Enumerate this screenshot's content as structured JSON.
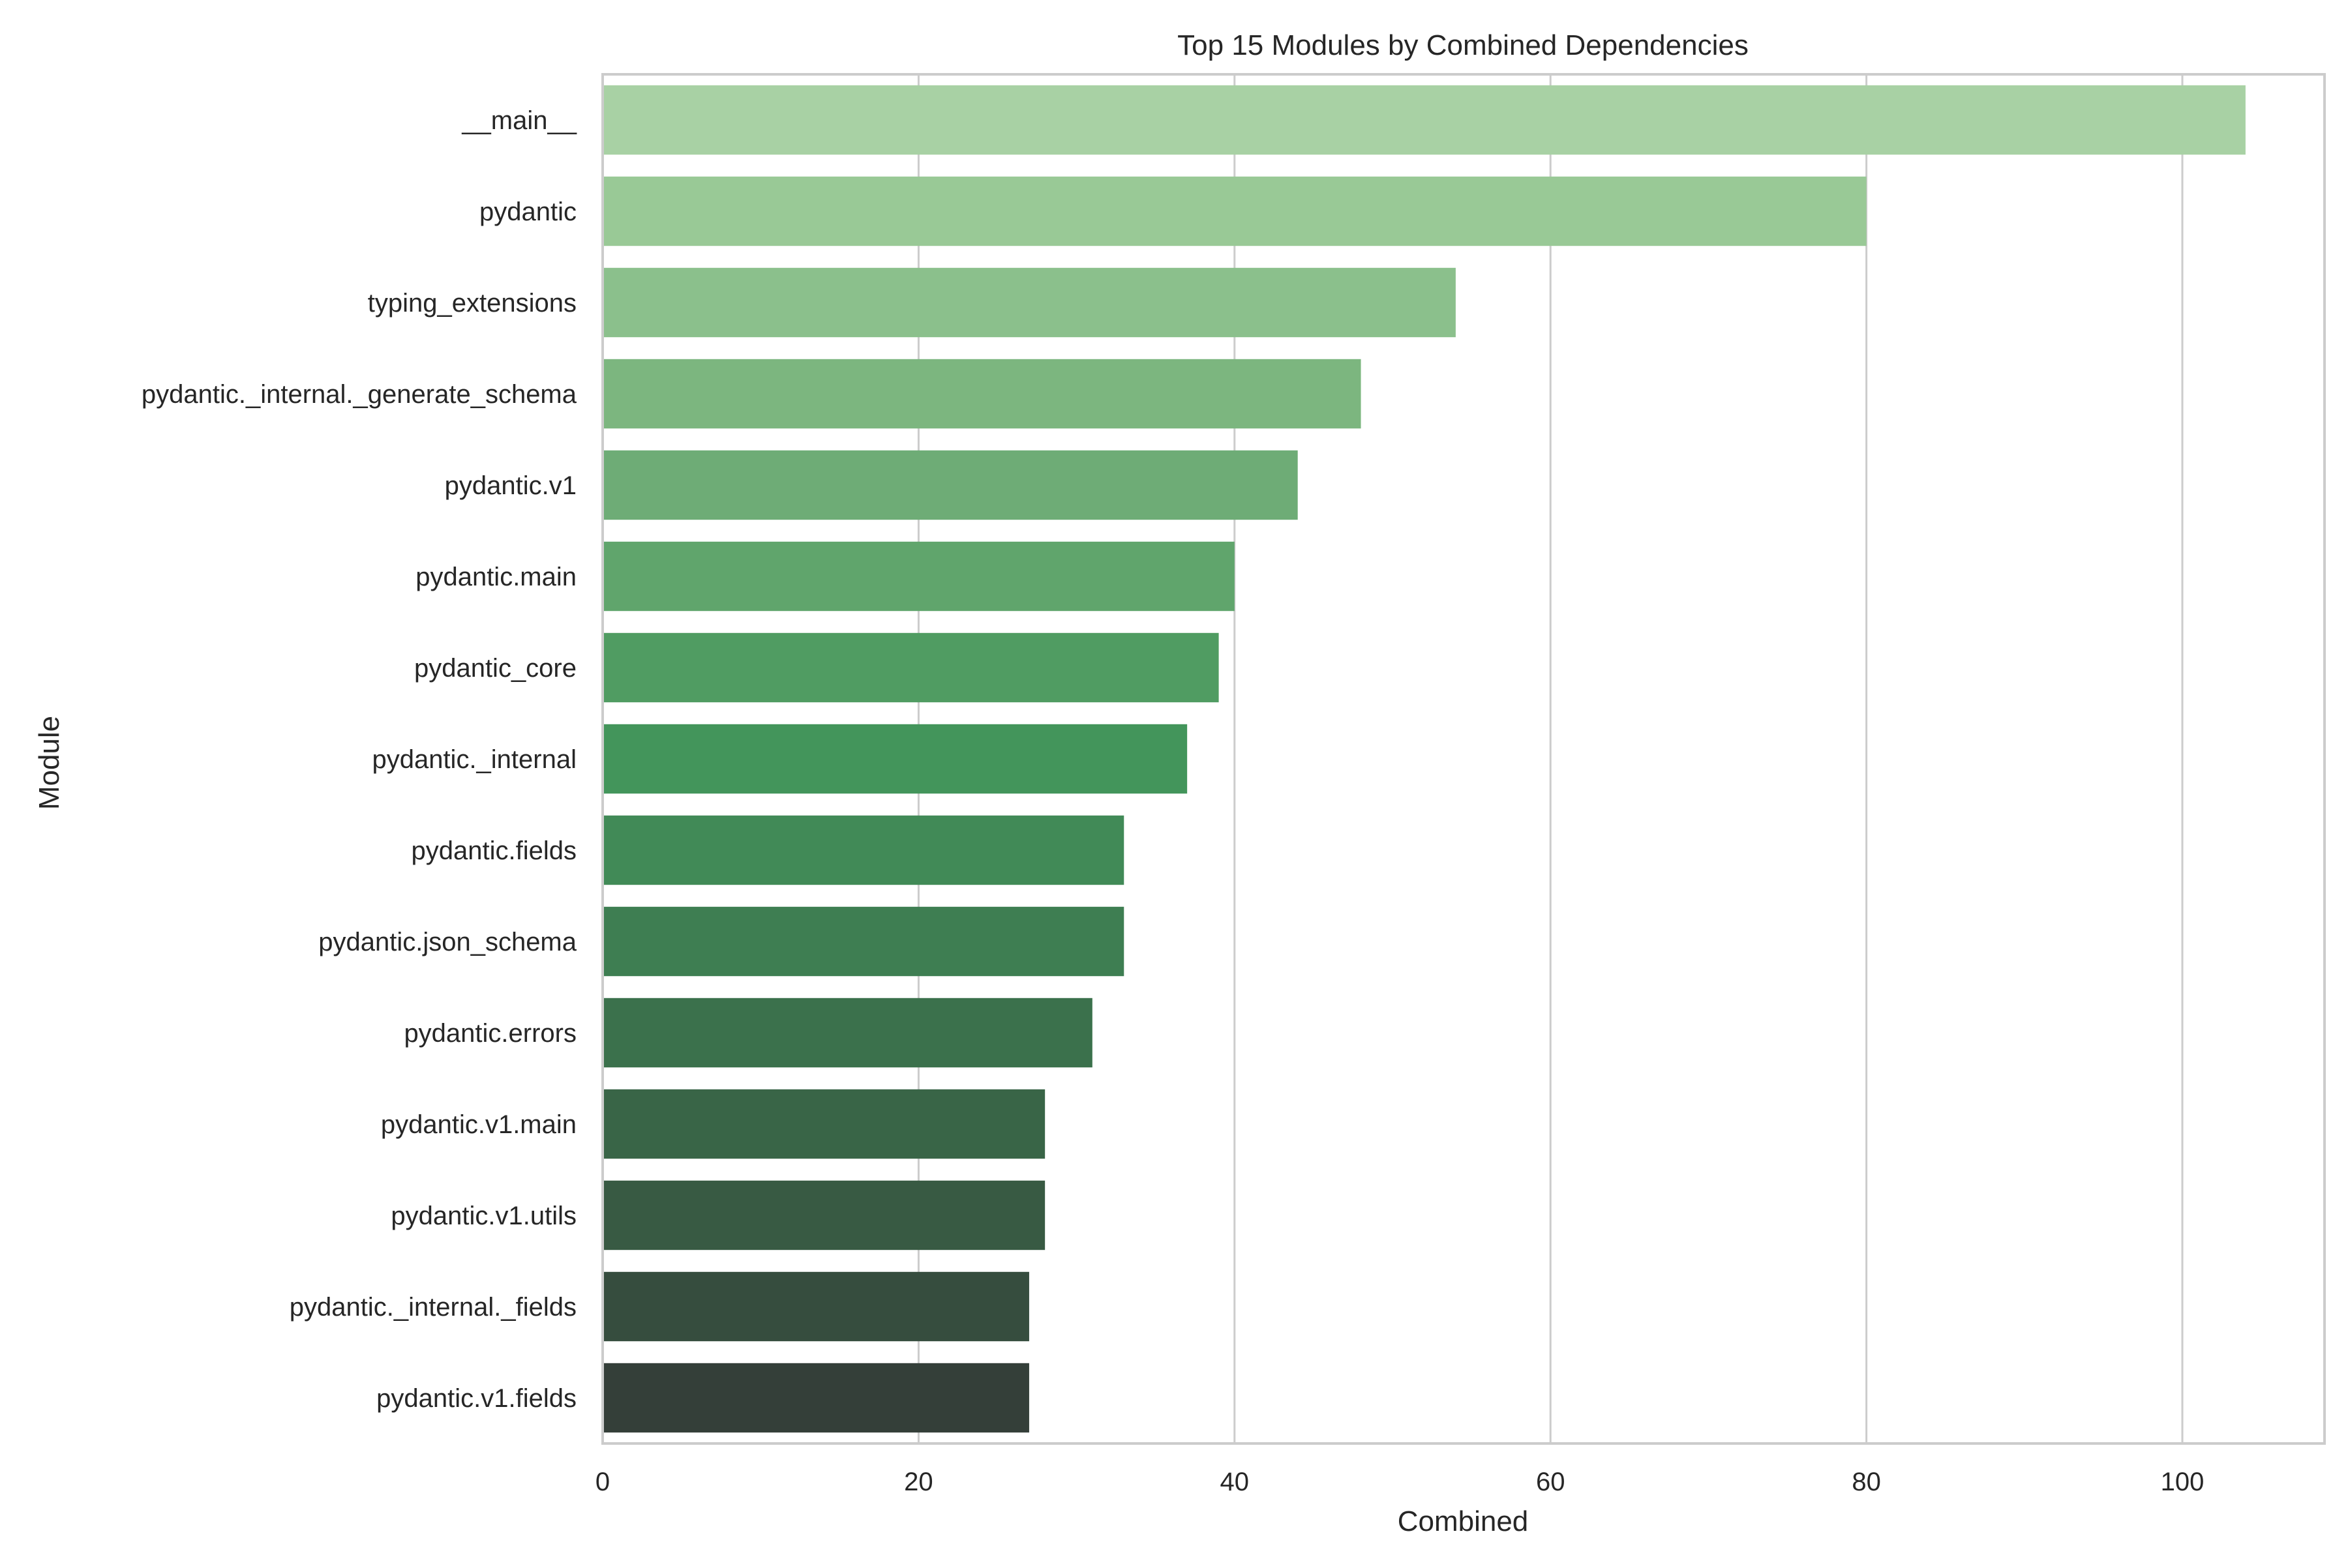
{
  "chart_data": {
    "type": "bar",
    "orientation": "horizontal",
    "title": "Top 15 Modules by Combined Dependencies",
    "xlabel": "Combined",
    "ylabel": "Module",
    "xlim": [
      0,
      109
    ],
    "xticks": [
      0,
      20,
      40,
      60,
      80,
      100
    ],
    "grid": true,
    "categories": [
      "__main__",
      "pydantic",
      "typing_extensions",
      "pydantic._internal._generate_schema",
      "pydantic.v1",
      "pydantic.main",
      "pydantic_core",
      "pydantic._internal",
      "pydantic.fields",
      "pydantic.json_schema",
      "pydantic.errors",
      "pydantic.v1.main",
      "pydantic.v1.utils",
      "pydantic._internal._fields",
      "pydantic.v1.fields"
    ],
    "values": [
      104,
      80,
      54,
      48,
      44,
      40,
      39,
      37,
      33,
      33,
      31,
      28,
      28,
      27,
      27
    ],
    "colors": [
      "#a8d1a4",
      "#99c996",
      "#8bc08c",
      "#7cb67f",
      "#6eac76",
      "#60a56c",
      "#509c62",
      "#43955b",
      "#418a57",
      "#3e7e52",
      "#3b714c",
      "#396547",
      "#385a43",
      "#364d3e",
      "#343f39"
    ]
  }
}
